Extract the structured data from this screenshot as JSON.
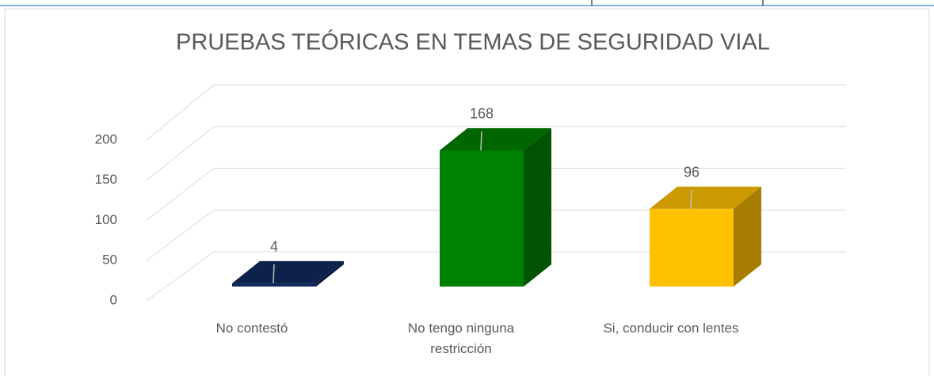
{
  "chart_data": {
    "type": "bar3d",
    "title": "PRUEBAS TEÓRICAS EN TEMAS DE SEGURIDAD VIAL",
    "categories": [
      "No contestó",
      "No tengo ninguna restricción",
      "Si, conducir con lentes"
    ],
    "values": [
      4,
      168,
      96
    ],
    "colors": [
      "#0f2b5e",
      "#008000",
      "#ffc000"
    ],
    "ylim": [
      0,
      200
    ],
    "yticks": [
      0,
      50,
      100,
      150,
      200
    ],
    "grid": true
  }
}
